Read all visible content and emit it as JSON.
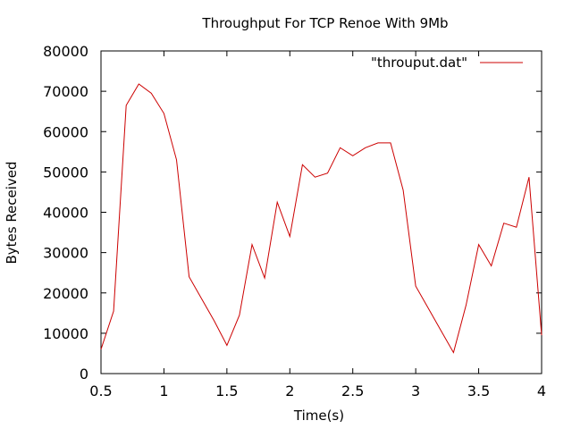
{
  "chart_data": {
    "type": "line",
    "title": "Throughput For TCP Renoe With 9Mb",
    "xlabel": "Time(s)",
    "ylabel": "Bytes Received",
    "xlim": [
      0.5,
      4
    ],
    "ylim": [
      0,
      80000
    ],
    "xticks": [
      "0.5",
      "1",
      "1.5",
      "2",
      "2.5",
      "3",
      "3.5",
      "4"
    ],
    "xtick_values": [
      0.5,
      1,
      1.5,
      2,
      2.5,
      3,
      3.5,
      4
    ],
    "yticks": [
      "0",
      "10000",
      "20000",
      "30000",
      "40000",
      "50000",
      "60000",
      "70000",
      "80000"
    ],
    "ytick_values": [
      0,
      10000,
      20000,
      30000,
      40000,
      50000,
      60000,
      70000,
      80000
    ],
    "grid": false,
    "legend_position": "top-right",
    "series": [
      {
        "name": "\"throuput.dat\"",
        "color": "#cc0000",
        "x": [
          0.5,
          0.6,
          0.7,
          0.8,
          0.9,
          1.0,
          1.1,
          1.2,
          1.3,
          1.4,
          1.5,
          1.6,
          1.7,
          1.8,
          1.9,
          2.0,
          2.1,
          2.2,
          2.3,
          2.4,
          2.5,
          2.6,
          2.7,
          2.8,
          2.9,
          3.0,
          3.1,
          3.2,
          3.3,
          3.4,
          3.5,
          3.6,
          3.7,
          3.8,
          3.9,
          4.0
        ],
        "y": [
          6000,
          15500,
          66500,
          71800,
          69500,
          64500,
          53000,
          24000,
          18500,
          13000,
          7000,
          14500,
          32000,
          23700,
          42500,
          34000,
          51800,
          48700,
          49700,
          56000,
          54000,
          56000,
          57200,
          57200,
          45500,
          21700,
          16200,
          10700,
          5200,
          17000,
          32000,
          26700,
          37300,
          36300,
          48700,
          9500
        ]
      }
    ]
  }
}
